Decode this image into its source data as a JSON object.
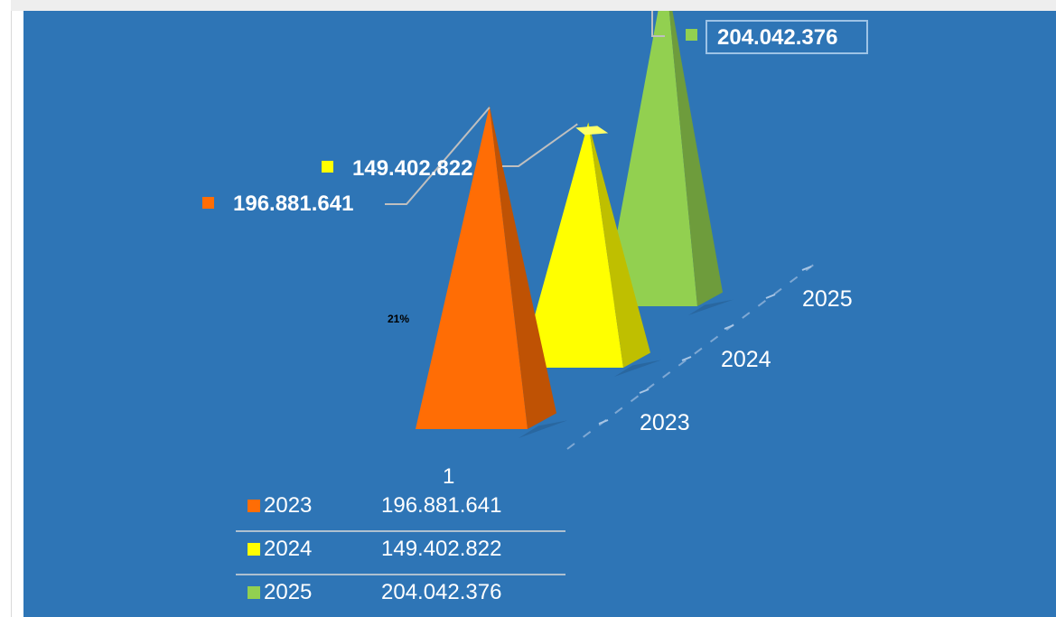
{
  "chart_data": {
    "type": "bar",
    "bar_shape": "pyramid-3d",
    "categories": [
      "1"
    ],
    "series": [
      {
        "name": "2023",
        "values": [
          196881641
        ],
        "label": "196.881.641",
        "color": "#ff6d05"
      },
      {
        "name": "2024",
        "values": [
          149402822
        ],
        "label": "149.402.822",
        "color": "#ffff00"
      },
      {
        "name": "2025",
        "values": [
          204042376
        ],
        "label": "204.042.376",
        "color": "#92d050"
      }
    ],
    "depth_axis_labels": [
      "2023",
      "2024",
      "2025"
    ],
    "annotation": "21%",
    "background_color": "#2e75b6",
    "data_table": true,
    "title": "",
    "xlabel": "",
    "ylabel": ""
  }
}
